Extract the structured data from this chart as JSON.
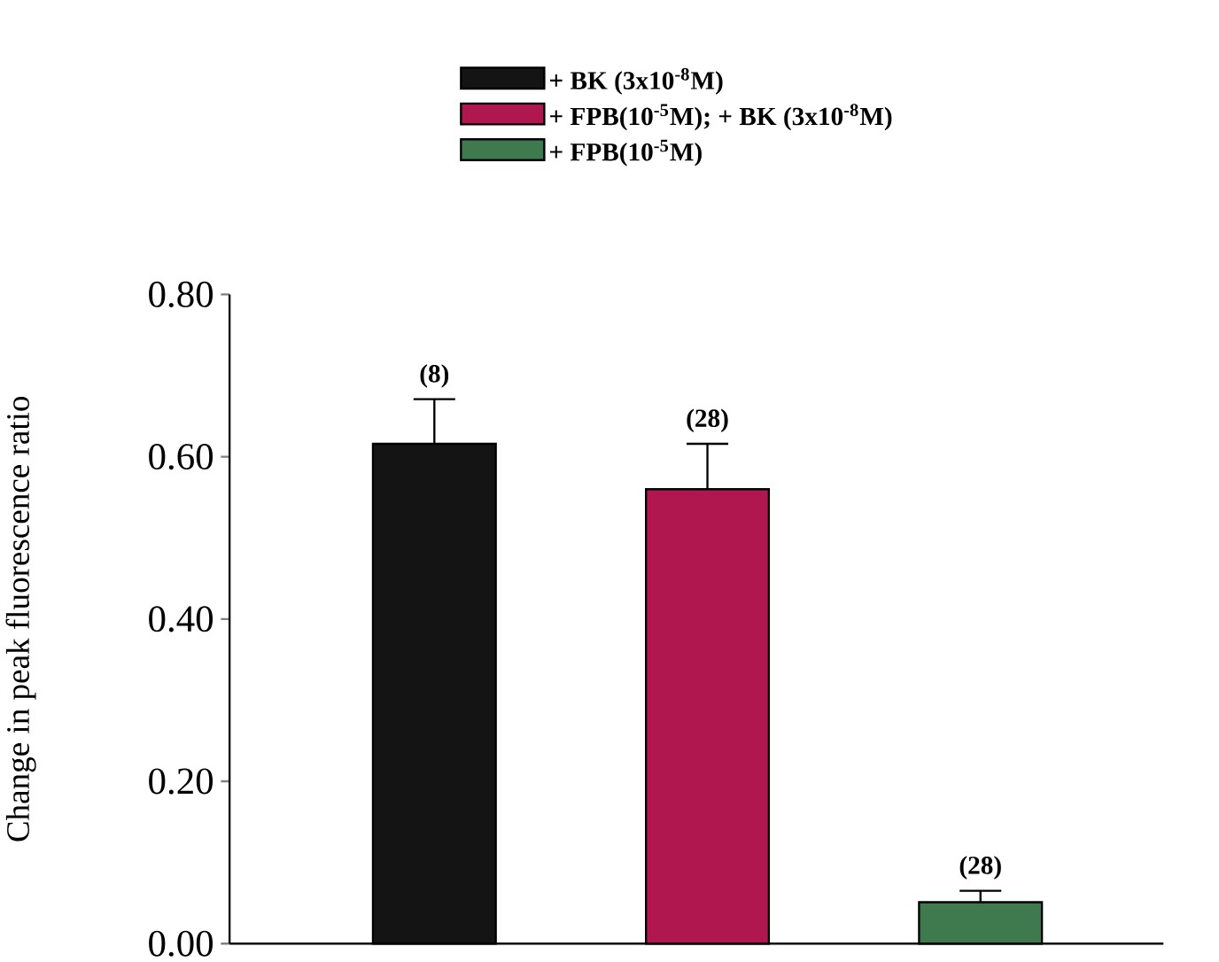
{
  "chart_data": {
    "type": "bar",
    "ylabel": "Change in peak fluorescence ratio",
    "categories": [
      null,
      null,
      null
    ],
    "series": [
      {
        "name": "+ BK (3x10$^{-8}$M)",
        "color": "#141414",
        "values": [
          0.616,
          null,
          null
        ],
        "errors": [
          0.055,
          null,
          null
        ]
      },
      {
        "name": "+ FPB(10$^{-5}$M); + BK (3x10$^{-8}$M)",
        "color": "#b0174f",
        "values": [
          null,
          0.56,
          null
        ],
        "errors": [
          null,
          0.056,
          null
        ]
      },
      {
        "name": "+ FPB(10$^{-5}$M)",
        "color": "#3f7a4f",
        "values": [
          null,
          null,
          0.051
        ],
        "errors": [
          null,
          null,
          0.014
        ]
      }
    ],
    "annotations": [
      {
        "text": "(8)",
        "y": 0.671
      },
      {
        "text": "(28)",
        "y": 0.616
      },
      {
        "text": "(28)",
        "y": 0.065
      }
    ],
    "ylim": [
      0,
      0.8
    ],
    "yticks": [
      {
        "value": 0,
        "label": "0.00"
      },
      {
        "value": 0.2,
        "label": "0.20"
      },
      {
        "value": 0.4,
        "label": "0.40"
      },
      {
        "value": 0.6,
        "label": "0.60"
      },
      {
        "value": 0.8,
        "label": "0.80"
      }
    ],
    "legend": "top",
    "grid": false
  }
}
